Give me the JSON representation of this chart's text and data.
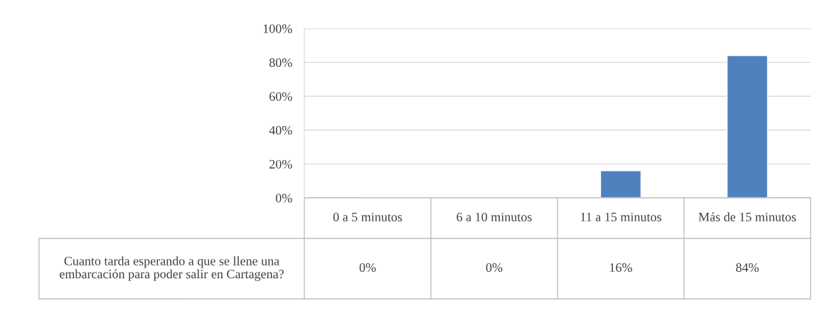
{
  "chart_data": {
    "type": "bar",
    "categories": [
      "0 a 5 minutos",
      "6 a 10 minutos",
      "11 a 15 minutos",
      "Más de 15 minutos"
    ],
    "series": [
      {
        "name": "Cuanto tarda esperando a que se llene una embarcación para poder salir en Cartagena?",
        "color": "#4f81bd",
        "values": [
          0,
          0,
          16,
          84
        ],
        "value_labels": [
          "0%",
          "0%",
          "16%",
          "84%"
        ]
      }
    ],
    "ylim": [
      0,
      100
    ],
    "yticks": [
      {
        "value": 0,
        "label": "0%"
      },
      {
        "value": 20,
        "label": "20%"
      },
      {
        "value": 40,
        "label": "40%"
      },
      {
        "value": 60,
        "label": "60%"
      },
      {
        "value": 80,
        "label": "80%"
      },
      {
        "value": 100,
        "label": "100%"
      }
    ],
    "grid": "y",
    "legend": false
  }
}
